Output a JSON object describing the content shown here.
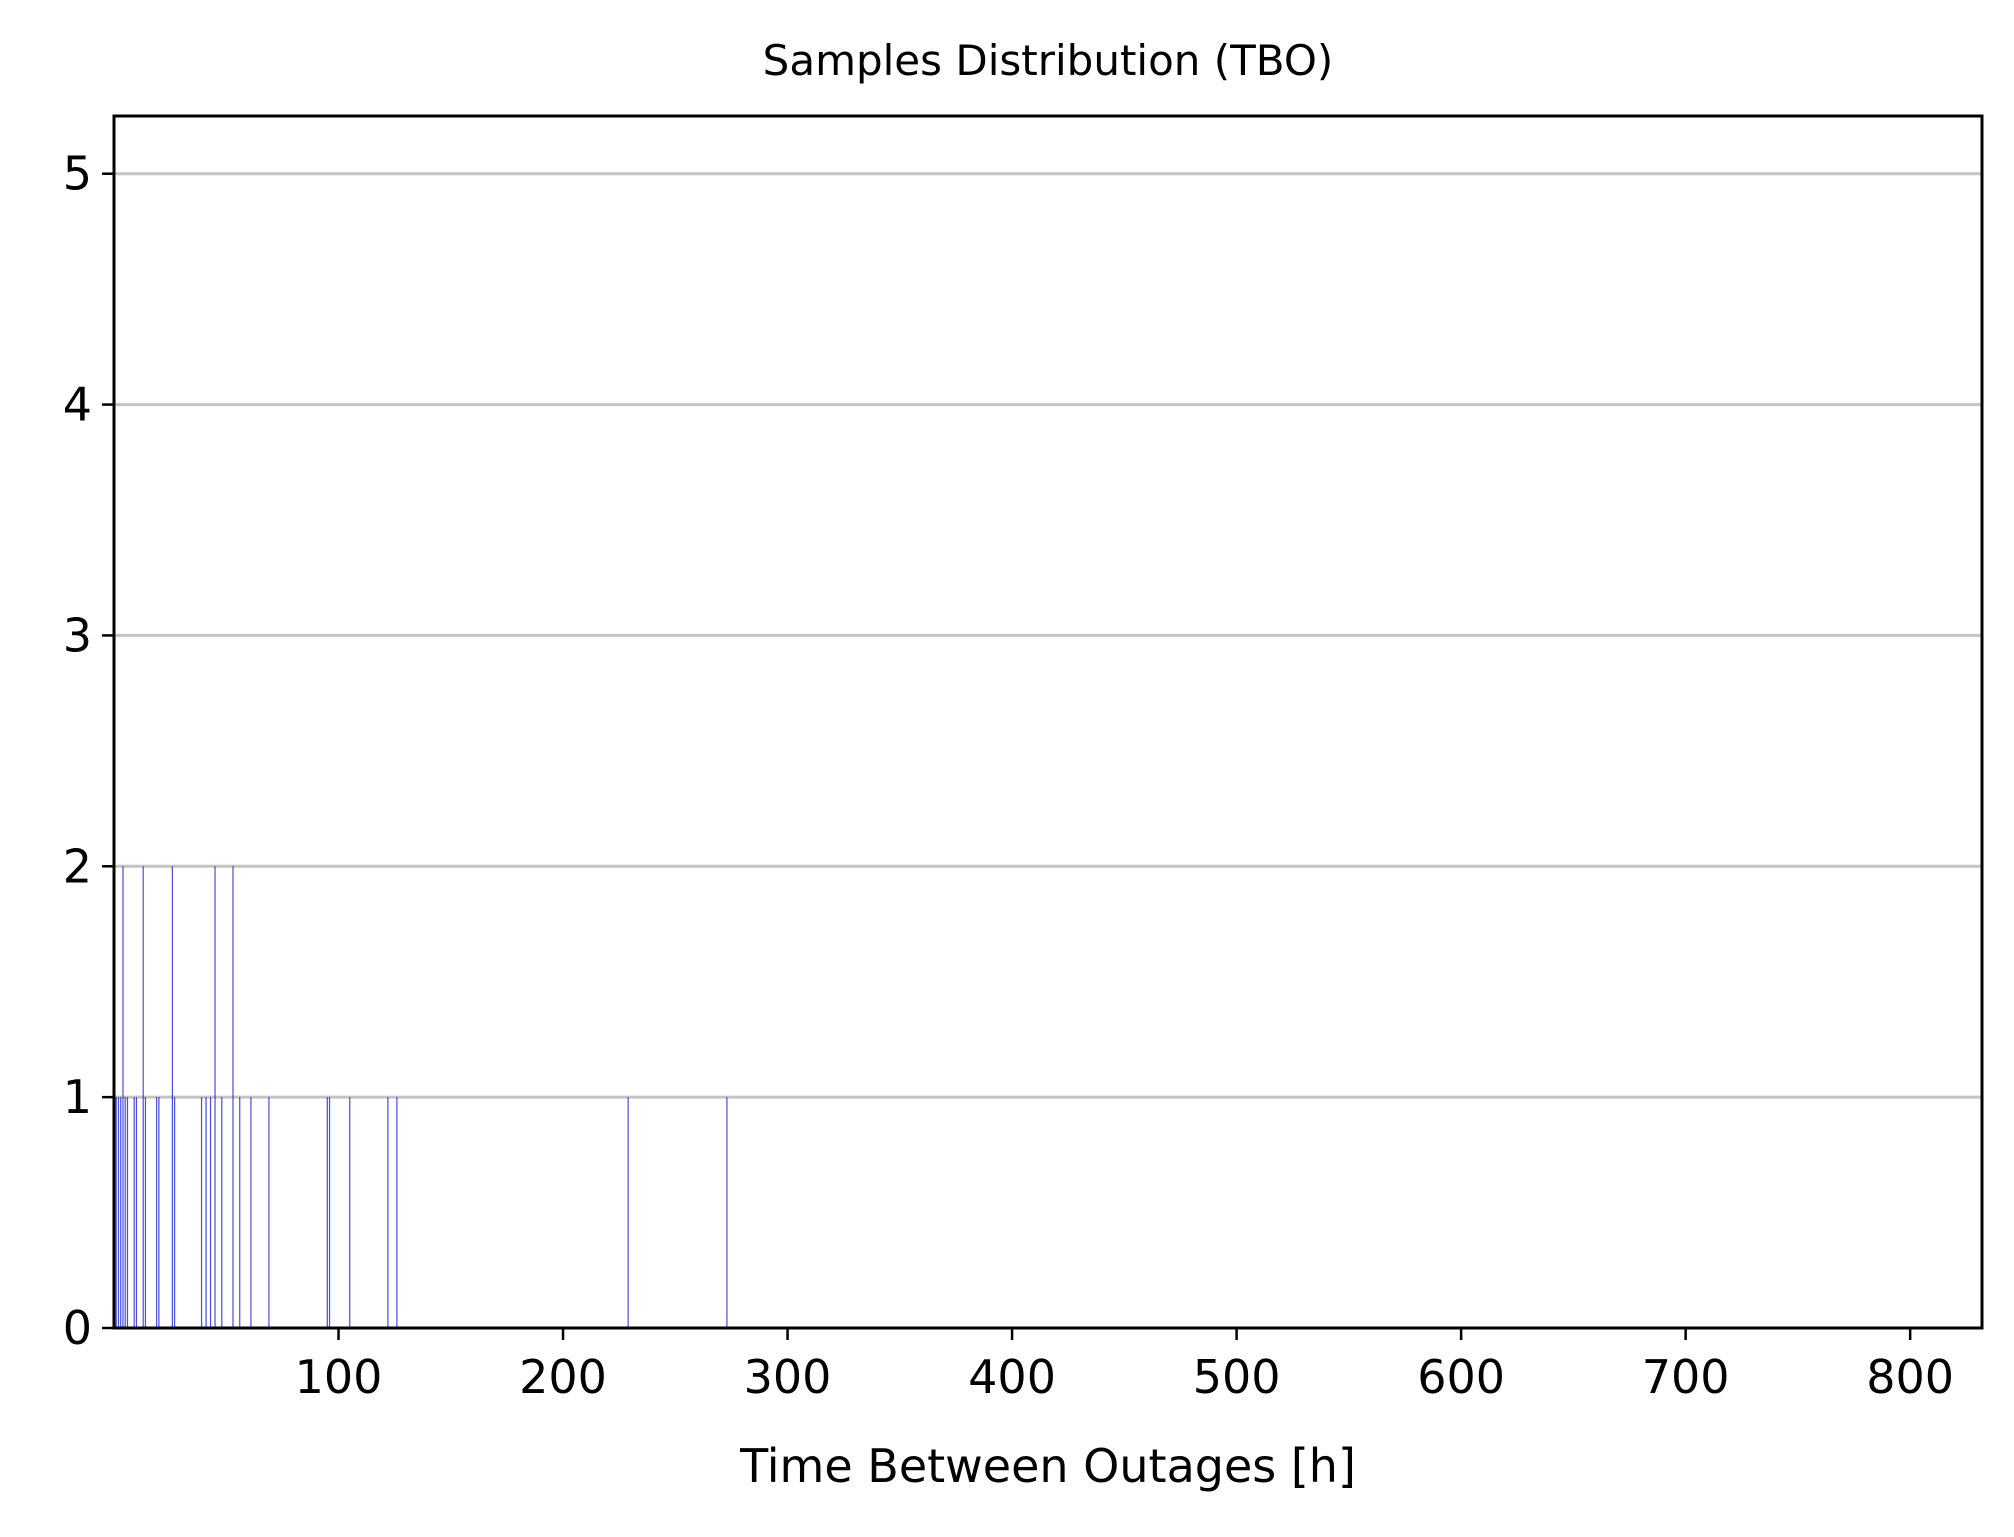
{
  "chart_data": {
    "type": "bar",
    "title": "Samples Distribution (TBO)",
    "xlabel": "Time Between Outages [h]",
    "ylabel": "",
    "xlim": [
      0,
      832
    ],
    "ylim": [
      0,
      5.25
    ],
    "x_ticks": [
      100,
      200,
      300,
      400,
      500,
      600,
      700,
      800
    ],
    "y_ticks": [
      0,
      1,
      2,
      3,
      4,
      5
    ],
    "grid": "y",
    "bar_color": "#0000cc",
    "gridline_color": "#c4c4c4",
    "bars": [
      {
        "x": 1,
        "count": 1
      },
      {
        "x": 2,
        "count": 1
      },
      {
        "x": 3,
        "count": 1
      },
      {
        "x": 4,
        "count": 2
      },
      {
        "x": 5,
        "count": 1
      },
      {
        "x": 6,
        "count": 1
      },
      {
        "x": 9,
        "count": 1
      },
      {
        "x": 10,
        "count": 1
      },
      {
        "x": 13,
        "count": 2
      },
      {
        "x": 14,
        "count": 1
      },
      {
        "x": 19,
        "count": 1
      },
      {
        "x": 20,
        "count": 1
      },
      {
        "x": 26,
        "count": 2
      },
      {
        "x": 27,
        "count": 1
      },
      {
        "x": 39,
        "count": 1
      },
      {
        "x": 41,
        "count": 1
      },
      {
        "x": 43,
        "count": 1
      },
      {
        "x": 45,
        "count": 2
      },
      {
        "x": 48,
        "count": 1
      },
      {
        "x": 53,
        "count": 2
      },
      {
        "x": 56,
        "count": 1
      },
      {
        "x": 61,
        "count": 1
      },
      {
        "x": 69,
        "count": 1
      },
      {
        "x": 95,
        "count": 1
      },
      {
        "x": 96,
        "count": 1
      },
      {
        "x": 105,
        "count": 1
      },
      {
        "x": 122,
        "count": 1
      },
      {
        "x": 126,
        "count": 1
      },
      {
        "x": 229,
        "count": 1
      },
      {
        "x": 273,
        "count": 1
      }
    ]
  }
}
